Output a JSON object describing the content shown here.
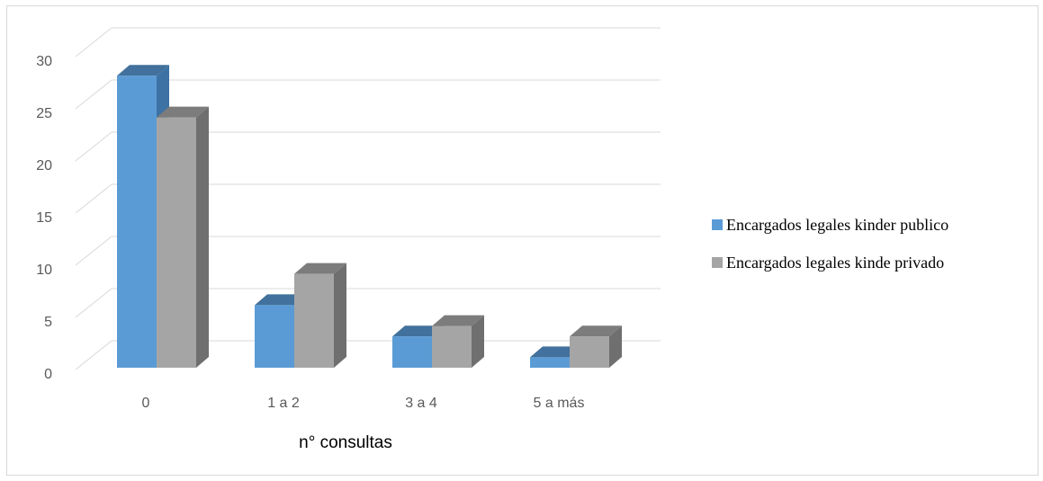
{
  "chart_data": {
    "type": "bar",
    "categories": [
      "0",
      "1 a 2",
      "3 a 4",
      "5 a más"
    ],
    "series": [
      {
        "name": "Encargados legales kinder publico",
        "values": [
          28,
          6,
          3,
          1
        ],
        "color": "#5b9bd5",
        "color_side": "#3d72a4",
        "color_top": "#41719c"
      },
      {
        "name": "Encargados legales kinde privado",
        "values": [
          24,
          9,
          4,
          3
        ],
        "color": "#a5a5a5",
        "color_side": "#6f6f6f",
        "color_top": "#7c7c7c"
      }
    ],
    "xlabel": "n° consultas",
    "ylabel": "",
    "ylim": [
      0,
      30
    ],
    "yticks": [
      0,
      5,
      10,
      15,
      20,
      25,
      30
    ],
    "grid": true,
    "legend_position": "right",
    "style": "3d-clustered-column"
  }
}
